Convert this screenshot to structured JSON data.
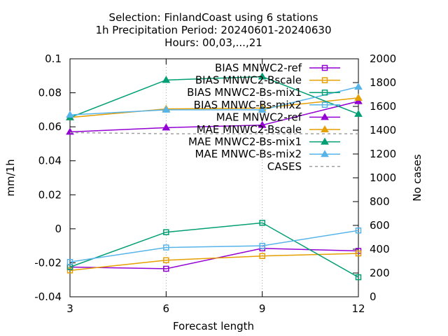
{
  "chart_data": {
    "type": "line",
    "title_lines": [
      "Selection: FinlandCoast using     6 stations",
      "1h Precipitation   Period: 20240601-20240630",
      "Hours: 00,03,...,21"
    ],
    "xlabel": "Forecast length",
    "ylabel": "mm/1h",
    "y2label": "No cases",
    "x": [
      3,
      6,
      9,
      12
    ],
    "xlim": [
      3,
      12
    ],
    "ylim": [
      -0.04,
      0.1
    ],
    "y2lim": [
      0,
      2000
    ],
    "x_ticks": [
      "3",
      "6",
      "9",
      "12"
    ],
    "y_ticks": [
      "-0.04",
      "-0.02",
      "0",
      "0.02",
      "0.04",
      "0.06",
      "0.08",
      "0.1"
    ],
    "y2_ticks": [
      "0",
      "200",
      "400",
      "600",
      "800",
      "1000",
      "1200",
      "1400",
      "1600",
      "1800",
      "2000"
    ],
    "grid": "dotted at x=6 and x=9",
    "legend_position": "top-right",
    "series": [
      {
        "name": "BIAS MNWC2-ref",
        "axis": "left",
        "marker": "square",
        "color": "#9400d3",
        "values": [
          -0.0225,
          -0.0235,
          -0.0115,
          -0.013
        ]
      },
      {
        "name": "BIAS MNWC2-Bscale",
        "axis": "left",
        "marker": "square",
        "color": "#e69f00",
        "values": [
          -0.0245,
          -0.0185,
          -0.016,
          -0.0145
        ]
      },
      {
        "name": "BIAS MNWC2-Bs-mix1",
        "axis": "left",
        "marker": "square",
        "color": "#009e73",
        "values": [
          -0.0225,
          -0.002,
          0.0035,
          -0.0285
        ]
      },
      {
        "name": "BIAS MNWC-Bs-mix2",
        "axis": "left",
        "marker": "square",
        "color": "#56b4e9",
        "values": [
          -0.0195,
          -0.011,
          -0.01,
          -0.001
        ]
      },
      {
        "name": "MAE MNWC2-ref",
        "axis": "left",
        "marker": "triangle",
        "color": "#9400d3",
        "values": [
          0.057,
          0.0595,
          0.061,
          0.075
        ]
      },
      {
        "name": "MAE MNWC2-Bscale",
        "axis": "left",
        "marker": "triangle",
        "color": "#e69f00",
        "values": [
          0.0655,
          0.0705,
          0.071,
          0.077
        ]
      },
      {
        "name": "MAE MNWC2-Bs-mix1",
        "axis": "left",
        "marker": "triangle",
        "color": "#009e73",
        "values": [
          0.0655,
          0.0875,
          0.0895,
          0.0675
        ]
      },
      {
        "name": "MAE MNWC-Bs-mix2",
        "axis": "left",
        "marker": "triangle",
        "color": "#56b4e9",
        "values": [
          0.067,
          0.07,
          0.07,
          0.0835
        ]
      },
      {
        "name": "CASES",
        "axis": "right",
        "marker": "none",
        "color": "#a0a0a0",
        "dashed": true,
        "values": [
          1380,
          1370,
          1370,
          1370
        ]
      }
    ]
  }
}
